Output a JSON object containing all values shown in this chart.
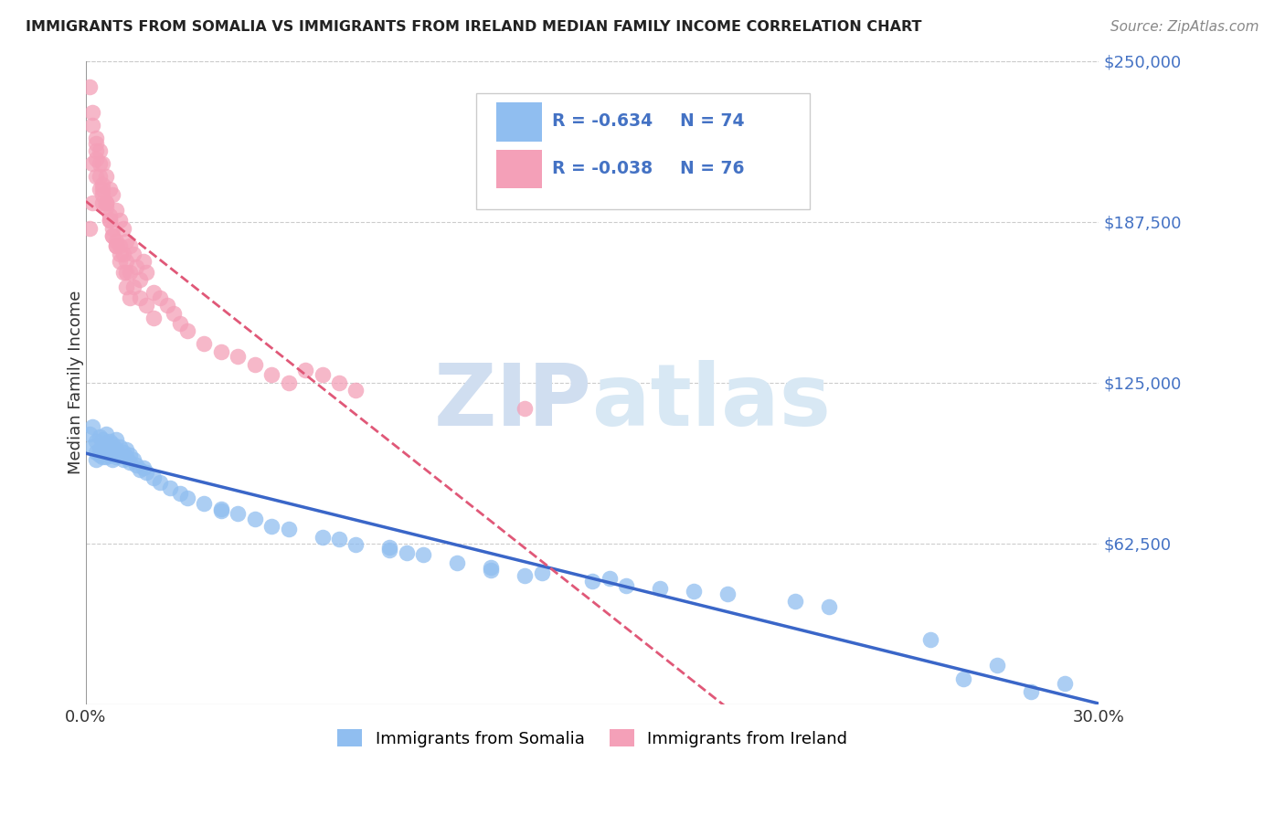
{
  "title": "IMMIGRANTS FROM SOMALIA VS IMMIGRANTS FROM IRELAND MEDIAN FAMILY INCOME CORRELATION CHART",
  "source": "Source: ZipAtlas.com",
  "ylabel": "Median Family Income",
  "xlim": [
    0.0,
    0.3
  ],
  "ylim": [
    0,
    250000
  ],
  "yticks": [
    0,
    62500,
    125000,
    187500,
    250000
  ],
  "ytick_labels": [
    "",
    "$62,500",
    "$125,000",
    "$187,500",
    "$250,000"
  ],
  "xticks": [
    0.0,
    0.05,
    0.1,
    0.15,
    0.2,
    0.25,
    0.3
  ],
  "xtick_labels": [
    "0.0%",
    "",
    "",
    "",
    "",
    "",
    "30.0%"
  ],
  "somalia_color": "#90BEF0",
  "ireland_color": "#F4A0B8",
  "somalia_line_color": "#3A66C8",
  "ireland_line_color": "#E05878",
  "axis_color": "#4472C4",
  "watermark_color": "#D0DEF0",
  "background_color": "#FFFFFF",
  "grid_color": "#CCCCCC",
  "legend_text_color": "#4472C4",
  "somalia_x": [
    0.001,
    0.002,
    0.002,
    0.003,
    0.003,
    0.003,
    0.004,
    0.004,
    0.004,
    0.005,
    0.005,
    0.005,
    0.006,
    0.006,
    0.006,
    0.007,
    0.007,
    0.007,
    0.008,
    0.008,
    0.008,
    0.009,
    0.009,
    0.009,
    0.01,
    0.01,
    0.011,
    0.011,
    0.012,
    0.012,
    0.013,
    0.013,
    0.014,
    0.015,
    0.016,
    0.017,
    0.018,
    0.02,
    0.022,
    0.025,
    0.028,
    0.03,
    0.035,
    0.04,
    0.045,
    0.05,
    0.06,
    0.07,
    0.08,
    0.09,
    0.1,
    0.11,
    0.12,
    0.13,
    0.15,
    0.17,
    0.19,
    0.21,
    0.26,
    0.28,
    0.12,
    0.09,
    0.04,
    0.055,
    0.135,
    0.075,
    0.16,
    0.095,
    0.18,
    0.22,
    0.25,
    0.27,
    0.155,
    0.29
  ],
  "somalia_y": [
    105000,
    108000,
    100000,
    102000,
    98000,
    95000,
    104000,
    99000,
    97000,
    103000,
    96000,
    101000,
    105000,
    98000,
    96000,
    100000,
    102000,
    97000,
    98000,
    101000,
    95000,
    99000,
    96000,
    103000,
    100000,
    97000,
    98000,
    95000,
    96000,
    99000,
    97000,
    94000,
    95000,
    93000,
    91000,
    92000,
    90000,
    88000,
    86000,
    84000,
    82000,
    80000,
    78000,
    76000,
    74000,
    72000,
    68000,
    65000,
    62000,
    60000,
    58000,
    55000,
    52000,
    50000,
    48000,
    45000,
    43000,
    40000,
    10000,
    5000,
    53000,
    61000,
    75000,
    69000,
    51000,
    64000,
    46000,
    59000,
    44000,
    38000,
    25000,
    15000,
    49000,
    8000
  ],
  "ireland_x": [
    0.001,
    0.002,
    0.002,
    0.003,
    0.003,
    0.004,
    0.004,
    0.005,
    0.005,
    0.006,
    0.006,
    0.007,
    0.007,
    0.008,
    0.008,
    0.009,
    0.009,
    0.01,
    0.01,
    0.011,
    0.011,
    0.012,
    0.012,
    0.013,
    0.013,
    0.014,
    0.015,
    0.016,
    0.017,
    0.018,
    0.02,
    0.022,
    0.024,
    0.026,
    0.028,
    0.03,
    0.035,
    0.04,
    0.045,
    0.05,
    0.055,
    0.06,
    0.065,
    0.07,
    0.075,
    0.08,
    0.001,
    0.002,
    0.003,
    0.004,
    0.005,
    0.006,
    0.007,
    0.008,
    0.009,
    0.01,
    0.012,
    0.014,
    0.016,
    0.018,
    0.02,
    0.003,
    0.004,
    0.005,
    0.006,
    0.007,
    0.008,
    0.009,
    0.01,
    0.011,
    0.012,
    0.013,
    0.13,
    0.002,
    0.003,
    0.005
  ],
  "ireland_y": [
    185000,
    210000,
    195000,
    205000,
    220000,
    200000,
    215000,
    195000,
    210000,
    205000,
    195000,
    200000,
    190000,
    198000,
    185000,
    192000,
    180000,
    188000,
    178000,
    185000,
    175000,
    180000,
    172000,
    178000,
    168000,
    175000,
    170000,
    165000,
    172000,
    168000,
    160000,
    158000,
    155000,
    152000,
    148000,
    145000,
    140000,
    137000,
    135000,
    132000,
    128000,
    125000,
    130000,
    128000,
    125000,
    122000,
    240000,
    225000,
    215000,
    205000,
    198000,
    193000,
    188000,
    182000,
    178000,
    175000,
    168000,
    162000,
    158000,
    155000,
    150000,
    218000,
    210000,
    200000,
    195000,
    188000,
    182000,
    178000,
    172000,
    168000,
    162000,
    158000,
    115000,
    230000,
    212000,
    202000
  ]
}
